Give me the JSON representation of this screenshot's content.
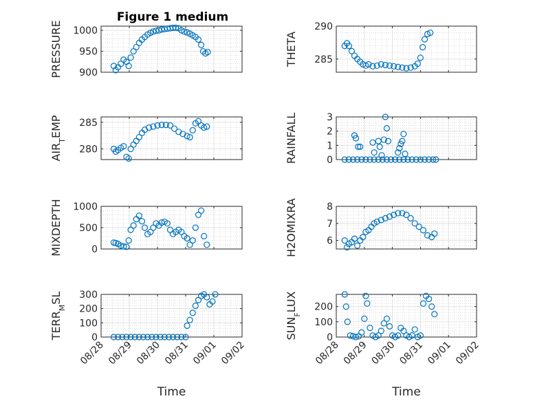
{
  "title": "Figure 1 medium",
  "colors": {
    "marker": "#0072bd",
    "axes": "#262626"
  },
  "chart_data": [
    {
      "type": "scatter",
      "ylabel": "PRESSURE",
      "ylim": [
        900,
        1010
      ],
      "yticks": [
        900,
        950,
        1000
      ],
      "xlim": [
        0,
        5
      ],
      "points": [
        [
          0.45,
          915
        ],
        [
          0.52,
          905
        ],
        [
          0.6,
          912
        ],
        [
          0.7,
          920
        ],
        [
          0.8,
          930
        ],
        [
          0.9,
          925
        ],
        [
          0.98,
          915
        ],
        [
          1.05,
          935
        ],
        [
          1.15,
          950
        ],
        [
          1.25,
          960
        ],
        [
          1.35,
          970
        ],
        [
          1.45,
          978
        ],
        [
          1.55,
          984
        ],
        [
          1.65,
          990
        ],
        [
          1.75,
          994
        ],
        [
          1.85,
          997
        ],
        [
          1.95,
          999
        ],
        [
          2.05,
          1000
        ],
        [
          2.15,
          1002
        ],
        [
          2.25,
          1003
        ],
        [
          2.35,
          1004
        ],
        [
          2.45,
          1005
        ],
        [
          2.55,
          1006
        ],
        [
          2.65,
          1006
        ],
        [
          2.75,
          1005
        ],
        [
          2.85,
          1000
        ],
        [
          2.95,
          997
        ],
        [
          3.05,
          995
        ],
        [
          3.15,
          992
        ],
        [
          3.25,
          988
        ],
        [
          3.35,
          984
        ],
        [
          3.45,
          978
        ],
        [
          3.55,
          965
        ],
        [
          3.62,
          950
        ],
        [
          3.7,
          945
        ],
        [
          3.78,
          948
        ]
      ]
    },
    {
      "type": "scatter",
      "ylabel": "THETA",
      "ylim": [
        283,
        290
      ],
      "yticks": [
        285,
        290
      ],
      "xlim": [
        0,
        5
      ],
      "points": [
        [
          0.3,
          287
        ],
        [
          0.38,
          287.4
        ],
        [
          0.45,
          287
        ],
        [
          0.55,
          286.2
        ],
        [
          0.65,
          285.5
        ],
        [
          0.75,
          285
        ],
        [
          0.85,
          284.6
        ],
        [
          0.95,
          284.2
        ],
        [
          1.05,
          284
        ],
        [
          1.15,
          284.2
        ],
        [
          1.3,
          283.9
        ],
        [
          1.45,
          284
        ],
        [
          1.6,
          284.2
        ],
        [
          1.75,
          284.1
        ],
        [
          1.9,
          284
        ],
        [
          2.05,
          283.9
        ],
        [
          2.2,
          283.8
        ],
        [
          2.35,
          283.7
        ],
        [
          2.5,
          283.6
        ],
        [
          2.65,
          283.7
        ],
        [
          2.8,
          283.9
        ],
        [
          2.9,
          284.3
        ],
        [
          3.0,
          285.2
        ],
        [
          3.08,
          286.8
        ],
        [
          3.15,
          288
        ],
        [
          3.25,
          288.8
        ],
        [
          3.35,
          289
        ]
      ]
    },
    {
      "type": "scatter",
      "ylabel": "AIR_TEMP",
      "ylim": [
        278,
        286
      ],
      "yticks": [
        280,
        285
      ],
      "xlim": [
        0,
        5
      ],
      "points": [
        [
          0.45,
          280
        ],
        [
          0.52,
          279.5
        ],
        [
          0.6,
          279.8
        ],
        [
          0.7,
          280.2
        ],
        [
          0.8,
          280.5
        ],
        [
          0.9,
          278.5
        ],
        [
          0.98,
          278.2
        ],
        [
          1.05,
          280
        ],
        [
          1.15,
          280.8
        ],
        [
          1.25,
          281.5
        ],
        [
          1.35,
          282.2
        ],
        [
          1.45,
          283
        ],
        [
          1.55,
          283.6
        ],
        [
          1.7,
          284
        ],
        [
          1.85,
          284.2
        ],
        [
          2.0,
          284.4
        ],
        [
          2.15,
          284.5
        ],
        [
          2.3,
          284.5
        ],
        [
          2.45,
          284.4
        ],
        [
          2.6,
          283.8
        ],
        [
          2.75,
          283.2
        ],
        [
          2.9,
          282.8
        ],
        [
          3.05,
          282.4
        ],
        [
          3.15,
          282.2
        ],
        [
          3.25,
          283.5
        ],
        [
          3.35,
          284.8
        ],
        [
          3.45,
          285.2
        ],
        [
          3.55,
          284.4
        ],
        [
          3.65,
          284
        ],
        [
          3.75,
          284.2
        ]
      ]
    },
    {
      "type": "scatter",
      "ylabel": "RAINFALL",
      "ylim": [
        0,
        3
      ],
      "yticks": [
        0,
        1,
        2,
        3
      ],
      "xlim": [
        0,
        5
      ],
      "points": [
        [
          0.3,
          0
        ],
        [
          0.45,
          0
        ],
        [
          0.6,
          0
        ],
        [
          0.75,
          0
        ],
        [
          0.9,
          0
        ],
        [
          1.05,
          0
        ],
        [
          1.2,
          0
        ],
        [
          1.35,
          0
        ],
        [
          1.5,
          0
        ],
        [
          1.65,
          0
        ],
        [
          1.8,
          0
        ],
        [
          1.95,
          0
        ],
        [
          2.1,
          0
        ],
        [
          2.25,
          0
        ],
        [
          2.4,
          0
        ],
        [
          2.55,
          0
        ],
        [
          2.7,
          0
        ],
        [
          2.85,
          0
        ],
        [
          3.0,
          0
        ],
        [
          3.15,
          0
        ],
        [
          3.3,
          0
        ],
        [
          3.45,
          0
        ],
        [
          3.55,
          0
        ],
        [
          0.65,
          1.7
        ],
        [
          0.7,
          1.5
        ],
        [
          0.78,
          0.9
        ],
        [
          0.85,
          0.9
        ],
        [
          1.3,
          1.2
        ],
        [
          1.35,
          0.5
        ],
        [
          1.5,
          1.3
        ],
        [
          1.55,
          0.9
        ],
        [
          1.62,
          0.3
        ],
        [
          1.7,
          1.4
        ],
        [
          1.75,
          3.0
        ],
        [
          1.8,
          2.2
        ],
        [
          1.85,
          1.3
        ],
        [
          2.2,
          0.5
        ],
        [
          2.25,
          0.8
        ],
        [
          2.3,
          1.1
        ],
        [
          2.35,
          1.3
        ],
        [
          2.4,
          1.8
        ],
        [
          2.45,
          0.4
        ]
      ]
    },
    {
      "type": "scatter",
      "ylabel": "MIXDEPTH",
      "ylim": [
        0,
        1000
      ],
      "yticks": [
        0,
        500,
        1000
      ],
      "xlim": [
        0,
        5
      ],
      "points": [
        [
          0.45,
          150
        ],
        [
          0.52,
          140
        ],
        [
          0.6,
          120
        ],
        [
          0.7,
          80
        ],
        [
          0.8,
          60
        ],
        [
          0.9,
          50
        ],
        [
          0.98,
          200
        ],
        [
          1.05,
          450
        ],
        [
          1.15,
          550
        ],
        [
          1.25,
          700
        ],
        [
          1.35,
          780
        ],
        [
          1.45,
          650
        ],
        [
          1.55,
          500
        ],
        [
          1.65,
          350
        ],
        [
          1.75,
          400
        ],
        [
          1.85,
          500
        ],
        [
          1.95,
          600
        ],
        [
          2.05,
          550
        ],
        [
          2.15,
          620
        ],
        [
          2.25,
          640
        ],
        [
          2.35,
          600
        ],
        [
          2.45,
          450
        ],
        [
          2.55,
          350
        ],
        [
          2.65,
          400
        ],
        [
          2.75,
          450
        ],
        [
          2.85,
          400
        ],
        [
          2.95,
          300
        ],
        [
          3.05,
          250
        ],
        [
          3.15,
          100
        ],
        [
          3.25,
          200
        ],
        [
          3.35,
          500
        ],
        [
          3.45,
          800
        ],
        [
          3.55,
          900
        ],
        [
          3.65,
          300
        ],
        [
          3.75,
          100
        ]
      ]
    },
    {
      "type": "scatter",
      "ylabel": "H2OMIXRA",
      "ylim": [
        5.5,
        8
      ],
      "yticks": [
        6,
        7,
        8
      ],
      "xlim": [
        0,
        5
      ],
      "points": [
        [
          0.3,
          6
        ],
        [
          0.38,
          5.6
        ],
        [
          0.45,
          5.8
        ],
        [
          0.55,
          5.9
        ],
        [
          0.65,
          6.1
        ],
        [
          0.75,
          5.7
        ],
        [
          0.85,
          6.0
        ],
        [
          0.95,
          6.2
        ],
        [
          1.05,
          6.5
        ],
        [
          1.15,
          6.6
        ],
        [
          1.25,
          6.8
        ],
        [
          1.35,
          7.0
        ],
        [
          1.45,
          7.1
        ],
        [
          1.6,
          7.2
        ],
        [
          1.75,
          7.3
        ],
        [
          1.9,
          7.4
        ],
        [
          2.05,
          7.5
        ],
        [
          2.2,
          7.6
        ],
        [
          2.35,
          7.6
        ],
        [
          2.5,
          7.5
        ],
        [
          2.65,
          7.3
        ],
        [
          2.8,
          7.0
        ],
        [
          2.95,
          6.8
        ],
        [
          3.1,
          6.6
        ],
        [
          3.25,
          6.3
        ],
        [
          3.4,
          6.2
        ],
        [
          3.5,
          6.4
        ]
      ]
    },
    {
      "type": "scatter",
      "ylabel": "TERR_MSL",
      "ylim": [
        0,
        300
      ],
      "yticks": [
        0,
        100,
        200,
        300
      ],
      "xlim": [
        0,
        5
      ],
      "points": [
        [
          0.45,
          0
        ],
        [
          0.6,
          0
        ],
        [
          0.75,
          0
        ],
        [
          0.9,
          0
        ],
        [
          1.05,
          0
        ],
        [
          1.2,
          0
        ],
        [
          1.35,
          0
        ],
        [
          1.5,
          0
        ],
        [
          1.65,
          0
        ],
        [
          1.8,
          0
        ],
        [
          1.95,
          0
        ],
        [
          2.1,
          0
        ],
        [
          2.25,
          0
        ],
        [
          2.4,
          0
        ],
        [
          2.55,
          0
        ],
        [
          2.7,
          0
        ],
        [
          2.85,
          0
        ],
        [
          3.0,
          0
        ],
        [
          3.05,
          80
        ],
        [
          3.15,
          120
        ],
        [
          3.25,
          170
        ],
        [
          3.35,
          220
        ],
        [
          3.45,
          260
        ],
        [
          3.55,
          290
        ],
        [
          3.65,
          300
        ],
        [
          3.75,
          280
        ],
        [
          3.85,
          230
        ],
        [
          3.95,
          250
        ],
        [
          4.05,
          300
        ]
      ]
    },
    {
      "type": "scatter",
      "ylabel": "SUN_FLUX",
      "ylim": [
        0,
        280
      ],
      "yticks": [
        0,
        100,
        200
      ],
      "xlim": [
        0,
        5
      ],
      "points": [
        [
          0.3,
          280
        ],
        [
          0.35,
          200
        ],
        [
          0.4,
          100
        ],
        [
          0.5,
          10
        ],
        [
          0.6,
          5
        ],
        [
          0.7,
          0
        ],
        [
          0.8,
          5
        ],
        [
          0.9,
          30
        ],
        [
          1.0,
          120
        ],
        [
          1.05,
          270
        ],
        [
          1.1,
          220
        ],
        [
          1.2,
          60
        ],
        [
          1.3,
          10
        ],
        [
          1.4,
          0
        ],
        [
          1.5,
          10
        ],
        [
          1.6,
          40
        ],
        [
          1.7,
          90
        ],
        [
          1.8,
          120
        ],
        [
          1.9,
          70
        ],
        [
          2.0,
          10
        ],
        [
          2.1,
          0
        ],
        [
          2.2,
          10
        ],
        [
          2.3,
          60
        ],
        [
          2.4,
          40
        ],
        [
          2.5,
          10
        ],
        [
          2.6,
          0
        ],
        [
          2.7,
          10
        ],
        [
          2.8,
          50
        ],
        [
          2.9,
          0
        ],
        [
          3.0,
          10
        ],
        [
          3.1,
          220
        ],
        [
          3.2,
          270
        ],
        [
          3.3,
          250
        ],
        [
          3.4,
          200
        ],
        [
          3.5,
          150
        ]
      ]
    }
  ],
  "axes_config": {
    "xtick_labels": [
      "08/28",
      "08/29",
      "08/30",
      "08/31",
      "09/01",
      "09/02"
    ],
    "xlabel": "Time"
  }
}
